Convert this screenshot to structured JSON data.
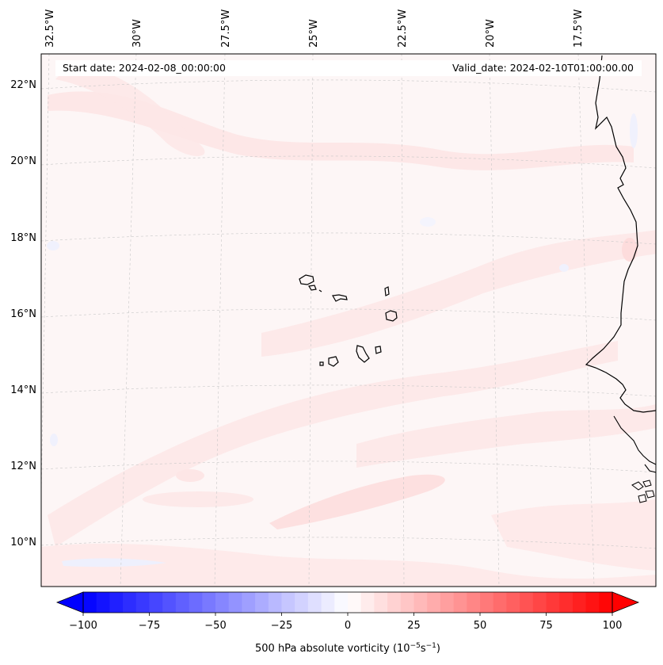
{
  "header": {
    "start_date": "Start date: 2024-02-08_00:00:00",
    "valid_date": "Valid_date: 2024-02-10T01:00:00.00"
  },
  "map": {
    "lon_labels": [
      "32.5°W",
      "30°W",
      "27.5°W",
      "25°W",
      "22.5°W",
      "20°W",
      "17.5°W"
    ],
    "lat_labels": [
      "22°N",
      "20°N",
      "18°N",
      "16°N",
      "14°N",
      "12°N",
      "10°N"
    ],
    "colors": {
      "background": "#fdf6f6",
      "positive_shade": "#fde3e3",
      "negative_shade": "#eef0fd",
      "coastline": "#000000",
      "grid": "#cccccc"
    }
  },
  "colorbar": {
    "ticks": [
      "−100",
      "−75",
      "−50",
      "−25",
      "0",
      "25",
      "50",
      "75",
      "100"
    ],
    "label": "500 hPa absolute vorticity (10",
    "label_exp1": "−5",
    "label_mid": "s",
    "label_exp2": "−1",
    "label_end": ")",
    "min": -100,
    "max": 100,
    "steps": 40,
    "low_color": "#0000ff",
    "mid_color": "#ffffff",
    "high_color": "#ff0000"
  }
}
